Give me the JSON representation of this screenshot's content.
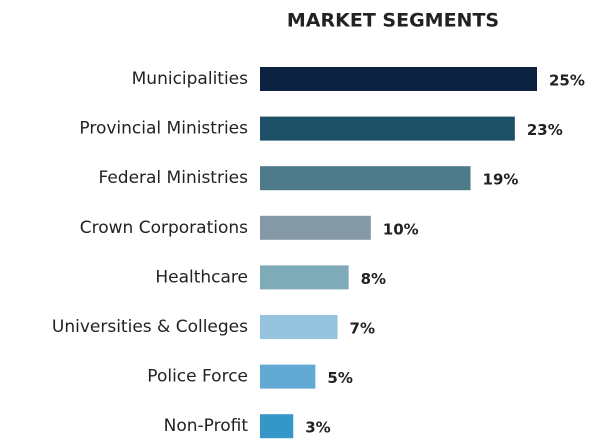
{
  "chart_data": {
    "type": "bar",
    "orientation": "horizontal",
    "title": "MARKET SEGMENTS",
    "categories": [
      "Municipalities",
      "Provincial Ministries",
      "Federal Ministries",
      "Crown Corporations",
      "Healthcare",
      "Universities & Colleges",
      "Police Force",
      "Non-Profit"
    ],
    "values": [
      25,
      23,
      19,
      10,
      8,
      7,
      5,
      3
    ],
    "value_labels": [
      "25%",
      "23%",
      "19%",
      "10%",
      "8%",
      "7%",
      "5%",
      "3%"
    ],
    "colors": [
      "#0d2240",
      "#1e5068",
      "#4f7a8a",
      "#8499a5",
      "#7faab8",
      "#96c4e0",
      "#62a9d4",
      "#3596c8"
    ]
  }
}
